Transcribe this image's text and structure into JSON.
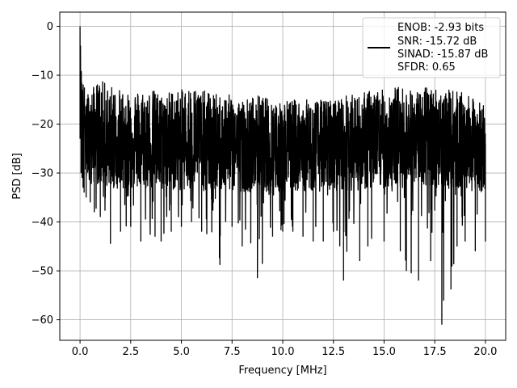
{
  "chart_data": {
    "type": "line",
    "title": "",
    "xlabel": "Frequency [MHz]",
    "ylabel": "PSD [dB]",
    "xlim": [
      -1.0,
      21.0
    ],
    "ylim": [
      -64.2,
      2.9
    ],
    "xticks": [
      0.0,
      2.5,
      5.0,
      7.5,
      10.0,
      12.5,
      15.0,
      17.5,
      20.0
    ],
    "xtick_labels": [
      "0.0",
      "2.5",
      "5.0",
      "7.5",
      "10.0",
      "12.5",
      "15.0",
      "17.5",
      "20.0"
    ],
    "yticks": [
      0,
      -10,
      -20,
      -30,
      -40,
      -50,
      -60
    ],
    "ytick_labels": [
      "0",
      "−10",
      "−20",
      "−30",
      "−40",
      "−50",
      "−60"
    ],
    "grid": true,
    "legend": {
      "placement": "upper-right",
      "lines": [
        "ENOB: -2.93 bits",
        "SNR: -15.72 dB",
        "SINAD: -15.87 dB",
        "SFDR: 0.65"
      ]
    },
    "series": [
      {
        "color": "#000000",
        "x": [
          0.0,
          0.05,
          0.1,
          0.15,
          0.2,
          0.3,
          0.5,
          0.7,
          1.0,
          1.5,
          2.0,
          2.5,
          3.0,
          3.7,
          4.0,
          4.5,
          5.0,
          5.5,
          6.0,
          6.9,
          7.5,
          8.0,
          8.75,
          9.5,
          10.0,
          10.5,
          11.0,
          11.5,
          12.0,
          12.5,
          13.0,
          13.8,
          14.2,
          15.0,
          15.8,
          16.1,
          16.7,
          17.3,
          17.85,
          18.3,
          18.6,
          19.0,
          19.5,
          20.0
        ],
        "y_center": [
          -2.0,
          -12.0,
          -16.0,
          -18.0,
          -20.0,
          -21.0,
          -21.5,
          -22.0,
          -22.5,
          -22.8,
          -23.0,
          -23.2,
          -23.3,
          -23.5,
          -23.5,
          -23.6,
          -23.6,
          -23.7,
          -23.7,
          -23.8,
          -23.8,
          -23.8,
          -23.8,
          -23.8,
          -23.8,
          -23.8,
          -23.8,
          -23.8,
          -23.7,
          -23.7,
          -23.6,
          -23.5,
          -23.4,
          -23.2,
          -23.0,
          -23.0,
          -23.0,
          -23.0,
          -23.1,
          -23.2,
          -23.3,
          -23.5,
          -23.7,
          -24.0
        ],
        "y_max": [
          0.0,
          -8.0,
          -9.0,
          -11.0,
          -12.0,
          -13.0,
          -14.0,
          -12.0,
          -11.0,
          -12.0,
          -13.0,
          -13.0,
          -13.0,
          -13.0,
          -14.0,
          -13.0,
          -13.0,
          -12.0,
          -13.0,
          -14.0,
          -14.0,
          -15.0,
          -14.0,
          -15.0,
          -15.0,
          -15.0,
          -15.0,
          -15.0,
          -15.0,
          -15.0,
          -14.0,
          -14.0,
          -13.0,
          -13.0,
          -12.0,
          -13.0,
          -13.0,
          -12.0,
          -13.0,
          -13.0,
          -13.0,
          -14.0,
          -15.0,
          -16.0
        ],
        "y_min": [
          -23.0,
          -30.0,
          -31.0,
          -33.0,
          -34.0,
          -35.0,
          -36.0,
          -38.0,
          -39.0,
          -44.5,
          -42.0,
          -41.0,
          -44.0,
          -43.0,
          -44.0,
          -42.0,
          -41.0,
          -40.0,
          -42.0,
          -48.8,
          -41.0,
          -45.0,
          -51.5,
          -43.0,
          -42.0,
          -42.0,
          -43.0,
          -44.0,
          -44.0,
          -42.0,
          -52.0,
          -48.0,
          -45.0,
          -44.0,
          -46.0,
          -50.0,
          -52.0,
          -48.0,
          -61.0,
          -53.8,
          -45.0,
          -44.0,
          -46.0,
          -44.0
        ]
      }
    ]
  }
}
